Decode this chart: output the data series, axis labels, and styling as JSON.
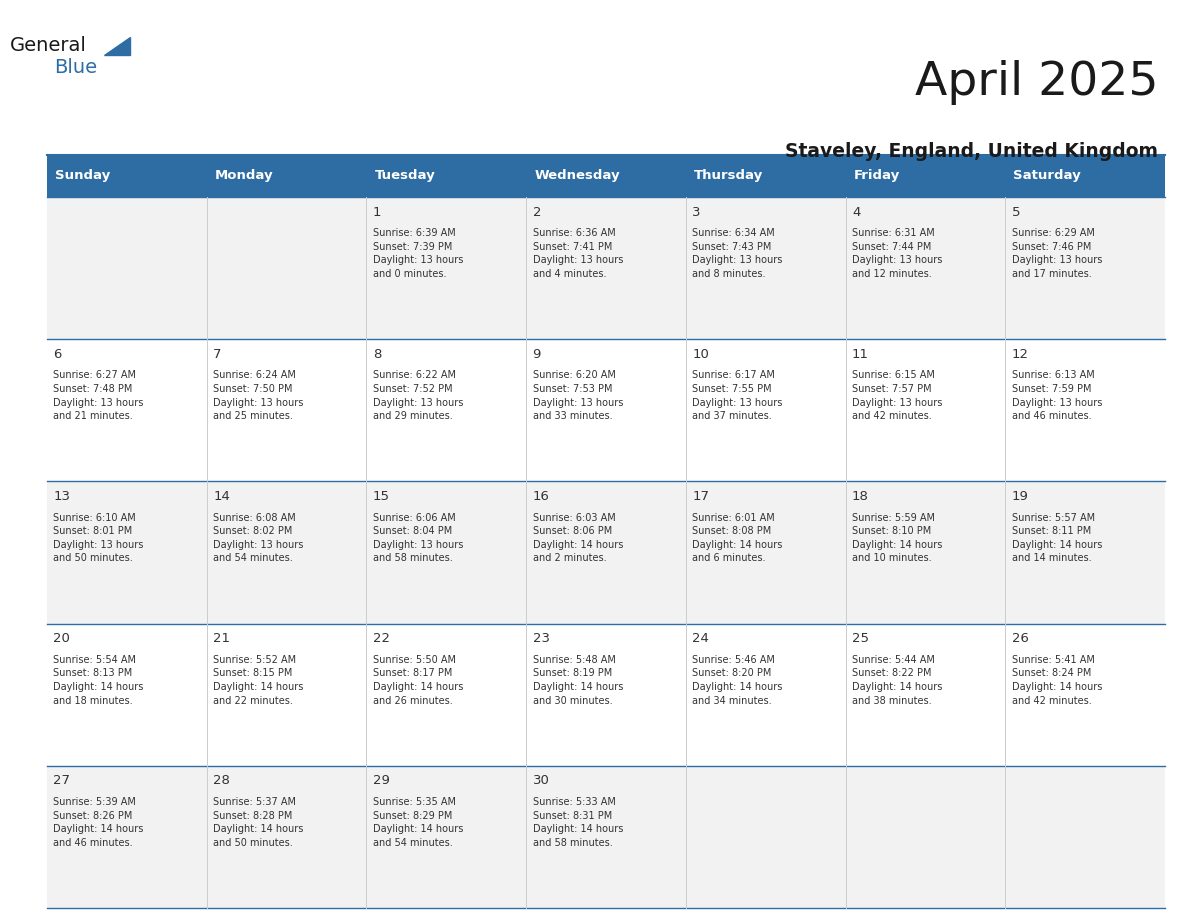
{
  "title": "April 2025",
  "subtitle": "Staveley, England, United Kingdom",
  "days_of_week": [
    "Sunday",
    "Monday",
    "Tuesday",
    "Wednesday",
    "Thursday",
    "Friday",
    "Saturday"
  ],
  "header_bg": "#2E6DA4",
  "header_text_color": "#FFFFFF",
  "cell_bg_odd": "#F2F2F2",
  "cell_bg_even": "#FFFFFF",
  "cell_text_color": "#333333",
  "grid_line_color": "#2E6DA4",
  "title_color": "#1a1a1a",
  "subtitle_color": "#1a1a1a",
  "logo_general_color": "#1a1a1a",
  "logo_blue_color": "#2E6DA4",
  "weeks": [
    [
      {
        "day": null,
        "info": null
      },
      {
        "day": null,
        "info": null
      },
      {
        "day": 1,
        "info": "Sunrise: 6:39 AM\nSunset: 7:39 PM\nDaylight: 13 hours\nand 0 minutes."
      },
      {
        "day": 2,
        "info": "Sunrise: 6:36 AM\nSunset: 7:41 PM\nDaylight: 13 hours\nand 4 minutes."
      },
      {
        "day": 3,
        "info": "Sunrise: 6:34 AM\nSunset: 7:43 PM\nDaylight: 13 hours\nand 8 minutes."
      },
      {
        "day": 4,
        "info": "Sunrise: 6:31 AM\nSunset: 7:44 PM\nDaylight: 13 hours\nand 12 minutes."
      },
      {
        "day": 5,
        "info": "Sunrise: 6:29 AM\nSunset: 7:46 PM\nDaylight: 13 hours\nand 17 minutes."
      }
    ],
    [
      {
        "day": 6,
        "info": "Sunrise: 6:27 AM\nSunset: 7:48 PM\nDaylight: 13 hours\nand 21 minutes."
      },
      {
        "day": 7,
        "info": "Sunrise: 6:24 AM\nSunset: 7:50 PM\nDaylight: 13 hours\nand 25 minutes."
      },
      {
        "day": 8,
        "info": "Sunrise: 6:22 AM\nSunset: 7:52 PM\nDaylight: 13 hours\nand 29 minutes."
      },
      {
        "day": 9,
        "info": "Sunrise: 6:20 AM\nSunset: 7:53 PM\nDaylight: 13 hours\nand 33 minutes."
      },
      {
        "day": 10,
        "info": "Sunrise: 6:17 AM\nSunset: 7:55 PM\nDaylight: 13 hours\nand 37 minutes."
      },
      {
        "day": 11,
        "info": "Sunrise: 6:15 AM\nSunset: 7:57 PM\nDaylight: 13 hours\nand 42 minutes."
      },
      {
        "day": 12,
        "info": "Sunrise: 6:13 AM\nSunset: 7:59 PM\nDaylight: 13 hours\nand 46 minutes."
      }
    ],
    [
      {
        "day": 13,
        "info": "Sunrise: 6:10 AM\nSunset: 8:01 PM\nDaylight: 13 hours\nand 50 minutes."
      },
      {
        "day": 14,
        "info": "Sunrise: 6:08 AM\nSunset: 8:02 PM\nDaylight: 13 hours\nand 54 minutes."
      },
      {
        "day": 15,
        "info": "Sunrise: 6:06 AM\nSunset: 8:04 PM\nDaylight: 13 hours\nand 58 minutes."
      },
      {
        "day": 16,
        "info": "Sunrise: 6:03 AM\nSunset: 8:06 PM\nDaylight: 14 hours\nand 2 minutes."
      },
      {
        "day": 17,
        "info": "Sunrise: 6:01 AM\nSunset: 8:08 PM\nDaylight: 14 hours\nand 6 minutes."
      },
      {
        "day": 18,
        "info": "Sunrise: 5:59 AM\nSunset: 8:10 PM\nDaylight: 14 hours\nand 10 minutes."
      },
      {
        "day": 19,
        "info": "Sunrise: 5:57 AM\nSunset: 8:11 PM\nDaylight: 14 hours\nand 14 minutes."
      }
    ],
    [
      {
        "day": 20,
        "info": "Sunrise: 5:54 AM\nSunset: 8:13 PM\nDaylight: 14 hours\nand 18 minutes."
      },
      {
        "day": 21,
        "info": "Sunrise: 5:52 AM\nSunset: 8:15 PM\nDaylight: 14 hours\nand 22 minutes."
      },
      {
        "day": 22,
        "info": "Sunrise: 5:50 AM\nSunset: 8:17 PM\nDaylight: 14 hours\nand 26 minutes."
      },
      {
        "day": 23,
        "info": "Sunrise: 5:48 AM\nSunset: 8:19 PM\nDaylight: 14 hours\nand 30 minutes."
      },
      {
        "day": 24,
        "info": "Sunrise: 5:46 AM\nSunset: 8:20 PM\nDaylight: 14 hours\nand 34 minutes."
      },
      {
        "day": 25,
        "info": "Sunrise: 5:44 AM\nSunset: 8:22 PM\nDaylight: 14 hours\nand 38 minutes."
      },
      {
        "day": 26,
        "info": "Sunrise: 5:41 AM\nSunset: 8:24 PM\nDaylight: 14 hours\nand 42 minutes."
      }
    ],
    [
      {
        "day": 27,
        "info": "Sunrise: 5:39 AM\nSunset: 8:26 PM\nDaylight: 14 hours\nand 46 minutes."
      },
      {
        "day": 28,
        "info": "Sunrise: 5:37 AM\nSunset: 8:28 PM\nDaylight: 14 hours\nand 50 minutes."
      },
      {
        "day": 29,
        "info": "Sunrise: 5:35 AM\nSunset: 8:29 PM\nDaylight: 14 hours\nand 54 minutes."
      },
      {
        "day": 30,
        "info": "Sunrise: 5:33 AM\nSunset: 8:31 PM\nDaylight: 14 hours\nand 58 minutes."
      },
      {
        "day": null,
        "info": null
      },
      {
        "day": null,
        "info": null
      },
      {
        "day": null,
        "info": null
      }
    ]
  ]
}
